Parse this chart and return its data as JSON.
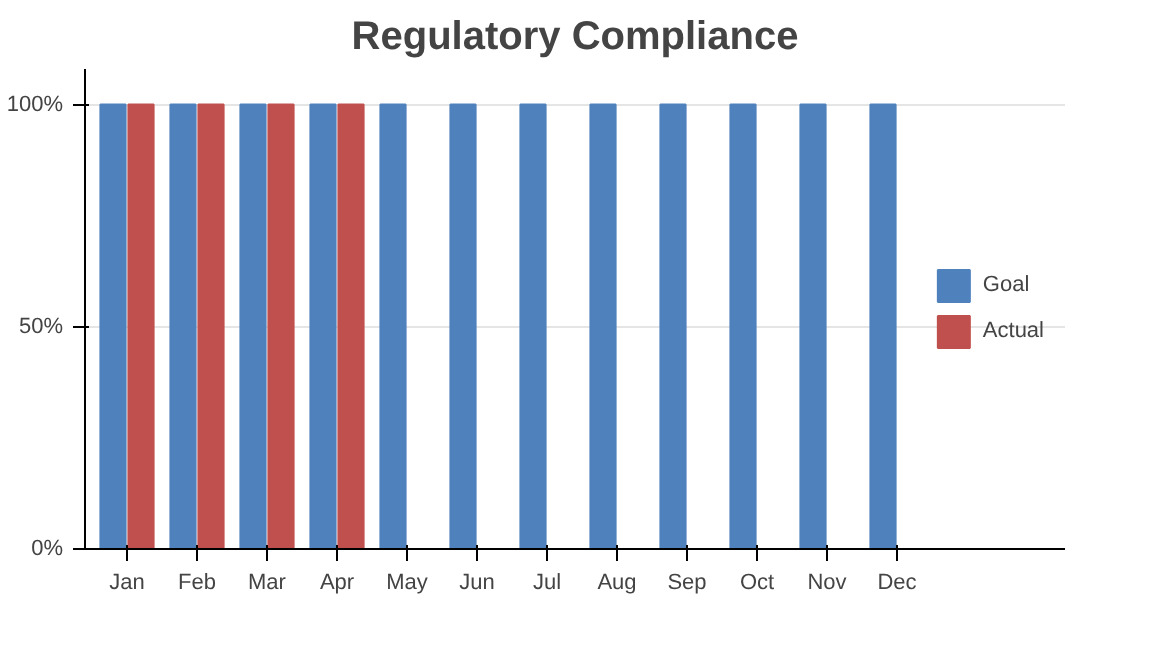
{
  "chart_data": {
    "type": "bar",
    "title": "Regulatory Compliance",
    "categories": [
      "Jan",
      "Feb",
      "Mar",
      "Apr",
      "May",
      "Jun",
      "Jul",
      "Aug",
      "Sep",
      "Oct",
      "Nov",
      "Dec"
    ],
    "series": [
      {
        "name": "Goal",
        "color": "#4f81bd",
        "values": [
          100,
          100,
          100,
          100,
          100,
          100,
          100,
          100,
          100,
          100,
          100,
          100
        ]
      },
      {
        "name": "Actual",
        "color": "#c0504d",
        "values": [
          100,
          100,
          100,
          100,
          null,
          null,
          null,
          null,
          null,
          null,
          null,
          null
        ]
      }
    ],
    "ylim": [
      0,
      100
    ],
    "yticks": [
      {
        "value": 0,
        "label": "0%"
      },
      {
        "value": 50,
        "label": "50%"
      },
      {
        "value": 100,
        "label": "100%"
      }
    ],
    "grid": "y",
    "legend": "right"
  }
}
